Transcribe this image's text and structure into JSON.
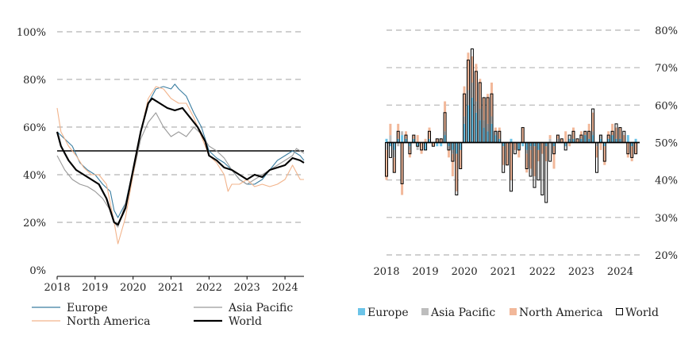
{
  "chart_data": [
    {
      "type": "line",
      "title": "",
      "xlabel": "",
      "ylabel": "",
      "x_tick_labels": [
        "2018",
        "2019",
        "2020",
        "2021",
        "2022",
        "2023",
        "2024"
      ],
      "x_ticks": [
        2018,
        2019,
        2020,
        2021,
        2022,
        2023,
        2024
      ],
      "xlim": [
        2018,
        2024.5
      ],
      "y_tick_labels": [
        "100%",
        "80%",
        "60%",
        "40%",
        "20%",
        "0%"
      ],
      "y_ticks": [
        100,
        80,
        60,
        40,
        20,
        0
      ],
      "ylim": [
        0,
        100
      ],
      "reference_line": 50,
      "grid": "horizontal dashed",
      "legend": [
        "Europe",
        "Asia Pacific",
        "North America",
        "World"
      ],
      "series": [
        {
          "name": "Europe",
          "color": "#3b7ea1",
          "points": [
            [
              2018,
              58
            ],
            [
              2018.2,
              55
            ],
            [
              2018.4,
              52
            ],
            [
              2018.6,
              45
            ],
            [
              2018.8,
              42
            ],
            [
              2019,
              40
            ],
            [
              2019.2,
              36
            ],
            [
              2019.4,
              33
            ],
            [
              2019.5,
              25
            ],
            [
              2019.6,
              22
            ],
            [
              2019.8,
              28
            ],
            [
              2020,
              42
            ],
            [
              2020.2,
              58
            ],
            [
              2020.4,
              70
            ],
            [
              2020.6,
              76
            ],
            [
              2020.8,
              77
            ],
            [
              2021,
              76
            ],
            [
              2021.1,
              78
            ],
            [
              2021.2,
              76
            ],
            [
              2021.4,
              73
            ],
            [
              2021.6,
              66
            ],
            [
              2021.8,
              60
            ],
            [
              2022,
              50
            ],
            [
              2022.2,
              47
            ],
            [
              2022.4,
              45
            ],
            [
              2022.6,
              42
            ],
            [
              2022.8,
              38
            ],
            [
              2023,
              36
            ],
            [
              2023.2,
              36
            ],
            [
              2023.4,
              38
            ],
            [
              2023.6,
              42
            ],
            [
              2023.8,
              46
            ],
            [
              2024,
              48
            ],
            [
              2024.2,
              50
            ],
            [
              2024.4,
              48
            ],
            [
              2024.5,
              46
            ]
          ]
        },
        {
          "name": "Asia Pacific",
          "color": "#9a9a9a",
          "points": [
            [
              2018,
              48
            ],
            [
              2018.2,
              42
            ],
            [
              2018.4,
              38
            ],
            [
              2018.6,
              36
            ],
            [
              2018.8,
              35
            ],
            [
              2019,
              33
            ],
            [
              2019.2,
              30
            ],
            [
              2019.4,
              25
            ],
            [
              2019.5,
              20
            ],
            [
              2019.6,
              18
            ],
            [
              2019.8,
              28
            ],
            [
              2020,
              40
            ],
            [
              2020.2,
              55
            ],
            [
              2020.4,
              62
            ],
            [
              2020.6,
              66
            ],
            [
              2020.8,
              60
            ],
            [
              2021,
              56
            ],
            [
              2021.2,
              58
            ],
            [
              2021.4,
              56
            ],
            [
              2021.6,
              60
            ],
            [
              2021.8,
              57
            ],
            [
              2022,
              52
            ],
            [
              2022.2,
              50
            ],
            [
              2022.4,
              47
            ],
            [
              2022.6,
              42
            ],
            [
              2022.8,
              38
            ],
            [
              2023,
              36
            ],
            [
              2023.2,
              38
            ],
            [
              2023.4,
              40
            ],
            [
              2023.6,
              42
            ],
            [
              2023.8,
              44
            ],
            [
              2024,
              46
            ],
            [
              2024.2,
              48
            ],
            [
              2024.3,
              51
            ],
            [
              2024.5,
              49
            ]
          ]
        },
        {
          "name": "North America",
          "color": "#f2b48c",
          "points": [
            [
              2018,
              68
            ],
            [
              2018.1,
              58
            ],
            [
              2018.3,
              52
            ],
            [
              2018.5,
              48
            ],
            [
              2018.7,
              43
            ],
            [
              2018.9,
              40
            ],
            [
              2019.1,
              40
            ],
            [
              2019.3,
              36
            ],
            [
              2019.5,
              20
            ],
            [
              2019.6,
              11
            ],
            [
              2019.8,
              22
            ],
            [
              2020,
              40
            ],
            [
              2020.2,
              58
            ],
            [
              2020.4,
              72
            ],
            [
              2020.6,
              77
            ],
            [
              2020.8,
              76
            ],
            [
              2021,
              72
            ],
            [
              2021.2,
              70
            ],
            [
              2021.4,
              70
            ],
            [
              2021.6,
              64
            ],
            [
              2021.8,
              56
            ],
            [
              2022,
              48
            ],
            [
              2022.2,
              45
            ],
            [
              2022.4,
              40
            ],
            [
              2022.5,
              33
            ],
            [
              2022.6,
              36
            ],
            [
              2022.8,
              36
            ],
            [
              2023,
              38
            ],
            [
              2023.2,
              35
            ],
            [
              2023.4,
              36
            ],
            [
              2023.6,
              35
            ],
            [
              2023.8,
              36
            ],
            [
              2024,
              38
            ],
            [
              2024.2,
              44
            ],
            [
              2024.4,
              38
            ],
            [
              2024.5,
              38
            ]
          ]
        },
        {
          "name": "World",
          "color": "#000000",
          "points": [
            [
              2018,
              58
            ],
            [
              2018.1,
              52
            ],
            [
              2018.3,
              46
            ],
            [
              2018.5,
              42
            ],
            [
              2018.7,
              40
            ],
            [
              2018.9,
              38
            ],
            [
              2019.1,
              36
            ],
            [
              2019.3,
              30
            ],
            [
              2019.5,
              20
            ],
            [
              2019.6,
              19
            ],
            [
              2019.8,
              26
            ],
            [
              2020,
              42
            ],
            [
              2020.2,
              58
            ],
            [
              2020.4,
              70
            ],
            [
              2020.5,
              72
            ],
            [
              2020.7,
              70
            ],
            [
              2020.9,
              68
            ],
            [
              2021.1,
              67
            ],
            [
              2021.3,
              68
            ],
            [
              2021.5,
              64
            ],
            [
              2021.7,
              60
            ],
            [
              2021.9,
              54
            ],
            [
              2022,
              48
            ],
            [
              2022.2,
              46
            ],
            [
              2022.4,
              43
            ],
            [
              2022.6,
              42
            ],
            [
              2022.8,
              40
            ],
            [
              2023,
              38
            ],
            [
              2023.2,
              40
            ],
            [
              2023.4,
              39
            ],
            [
              2023.6,
              42
            ],
            [
              2023.8,
              43
            ],
            [
              2024,
              44
            ],
            [
              2024.2,
              47
            ],
            [
              2024.4,
              46
            ],
            [
              2024.5,
              45
            ]
          ]
        }
      ]
    },
    {
      "type": "bar",
      "subtype": "stacked diverging monthly bars around 50% baseline",
      "title": "",
      "x_tick_labels": [
        "2018",
        "2019",
        "2020",
        "2021",
        "2022",
        "2023",
        "2024"
      ],
      "x_ticks": [
        2018,
        2019,
        2020,
        2021,
        2022,
        2023,
        2024
      ],
      "xlim": [
        2018,
        2024.5
      ],
      "y_tick_labels": [
        "80%",
        "70%",
        "60%",
        "50%",
        "40%",
        "30%",
        "20%"
      ],
      "y_ticks": [
        80,
        70,
        60,
        50,
        40,
        30,
        20
      ],
      "ylim": [
        20,
        80
      ],
      "baseline": 50,
      "grid": "horizontal dashed",
      "legend": [
        "Europe",
        "Asia Pacific",
        "North America",
        "World"
      ],
      "series": [
        {
          "name": "Europe",
          "color": "#6cc4e8",
          "style": "filled"
        },
        {
          "name": "Asia Pacific",
          "color": "#bdbdbd",
          "style": "filled"
        },
        {
          "name": "North America",
          "color": "#f2b89a",
          "style": "filled"
        },
        {
          "name": "World",
          "color": "#000000",
          "style": "outline"
        }
      ],
      "x": [
        2018.0,
        2018.1,
        2018.2,
        2018.3,
        2018.4,
        2018.5,
        2018.6,
        2018.7,
        2018.8,
        2018.9,
        2019.0,
        2019.1,
        2019.2,
        2019.3,
        2019.4,
        2019.5,
        2019.6,
        2019.7,
        2019.8,
        2019.9,
        2020.0,
        2020.1,
        2020.2,
        2020.3,
        2020.4,
        2020.5,
        2020.6,
        2020.7,
        2020.8,
        2020.9,
        2021.0,
        2021.1,
        2021.2,
        2021.3,
        2021.4,
        2021.5,
        2021.6,
        2021.7,
        2021.8,
        2021.9,
        2022.0,
        2022.1,
        2022.2,
        2022.3,
        2022.4,
        2022.5,
        2022.6,
        2022.7,
        2022.8,
        2022.9,
        2023.0,
        2023.1,
        2023.2,
        2023.3,
        2023.4,
        2023.5,
        2023.6,
        2023.7,
        2023.8,
        2023.9,
        2024.0,
        2024.1,
        2024.2,
        2024.3,
        2024.4
      ],
      "values": [
        [
          1,
          -2,
          -8,
          -9
        ],
        [
          -1,
          2,
          3,
          -4
        ],
        [
          -2,
          -2,
          -4,
          -8
        ],
        [
          1,
          -1,
          4,
          3
        ],
        [
          2,
          1,
          -14,
          -11
        ],
        [
          1,
          0,
          2,
          2
        ],
        [
          -1,
          -1,
          -2,
          -3
        ],
        [
          1,
          0,
          1,
          2
        ],
        [
          -1,
          -1,
          2,
          -1
        ],
        [
          0,
          0,
          -3,
          -2
        ],
        [
          -2,
          0,
          1,
          -2
        ],
        [
          1,
          0,
          3,
          3
        ],
        [
          0,
          0,
          -1,
          -1
        ],
        [
          -1,
          0,
          1,
          1
        ],
        [
          -1,
          0,
          1,
          1
        ],
        [
          2,
          1,
          8,
          8
        ],
        [
          -1,
          -1,
          -2,
          -2
        ],
        [
          -2,
          -1,
          -6,
          -5
        ],
        [
          -3,
          0,
          -10,
          -14
        ],
        [
          -2,
          0,
          -5,
          -7
        ],
        [
          5,
          2,
          8,
          13
        ],
        [
          10,
          4,
          10,
          22
        ],
        [
          12,
          4,
          7,
          25
        ],
        [
          8,
          3,
          10,
          19
        ],
        [
          6,
          3,
          8,
          16
        ],
        [
          4,
          2,
          6,
          12
        ],
        [
          3,
          2,
          8,
          12
        ],
        [
          5,
          2,
          9,
          13
        ],
        [
          2,
          1,
          1,
          3
        ],
        [
          1,
          0,
          3,
          3
        ],
        [
          -1,
          0,
          -5,
          -8
        ],
        [
          0,
          0,
          -6,
          -6
        ],
        [
          1,
          0,
          -10,
          -13
        ],
        [
          0,
          0,
          -2,
          -3
        ],
        [
          -2,
          0,
          -2,
          -2
        ],
        [
          -1,
          0,
          4,
          4
        ],
        [
          -2,
          -1,
          -5,
          -7
        ],
        [
          -1,
          -1,
          -5,
          -9
        ],
        [
          -1,
          0,
          -8,
          -12
        ],
        [
          -2,
          0,
          -3,
          -10
        ],
        [
          0,
          0,
          -3,
          -14
        ],
        [
          -1,
          0,
          -4,
          -16
        ],
        [
          0,
          1,
          1,
          -5
        ],
        [
          -1,
          0,
          -6,
          -3
        ],
        [
          0,
          1,
          1,
          2
        ],
        [
          0,
          0,
          1,
          1
        ],
        [
          -1,
          0,
          3,
          -2
        ],
        [
          1,
          0,
          -1,
          2
        ],
        [
          1,
          0,
          3,
          3
        ],
        [
          0,
          0,
          1,
          1
        ],
        [
          1,
          0,
          2,
          2
        ],
        [
          2,
          0,
          1,
          3
        ],
        [
          1,
          0,
          4,
          3
        ],
        [
          2,
          1,
          5,
          9
        ],
        [
          0,
          -1,
          -3,
          -8
        ],
        [
          1,
          1,
          -2,
          2
        ],
        [
          -1,
          0,
          -5,
          -5
        ],
        [
          1,
          0,
          2,
          2
        ],
        [
          2,
          0,
          3,
          3
        ],
        [
          1,
          0,
          3,
          5
        ],
        [
          1,
          0,
          3,
          4
        ],
        [
          0,
          0,
          2,
          3
        ],
        [
          2,
          0,
          -4,
          -3
        ],
        [
          -1,
          0,
          -4,
          -4
        ],
        [
          1,
          0,
          -3,
          -3
        ]
      ]
    }
  ],
  "legend_left": {
    "europe": "Europe",
    "asia_pacific": "Asia Pacific",
    "north_america": "North America",
    "world": "World"
  },
  "legend_right": {
    "europe": "Europe",
    "asia_pacific": "Asia Pacific",
    "north_america": "North America",
    "world": "World"
  },
  "colors": {
    "europe_line": "#3b7ea1",
    "asia_line": "#9a9a9a",
    "na_line": "#f2b48c",
    "world_line": "#000000",
    "europe_bar": "#6cc4e8",
    "asia_bar": "#bdbdbd",
    "na_bar": "#f2b89a",
    "grid": "#b5b5b5"
  }
}
